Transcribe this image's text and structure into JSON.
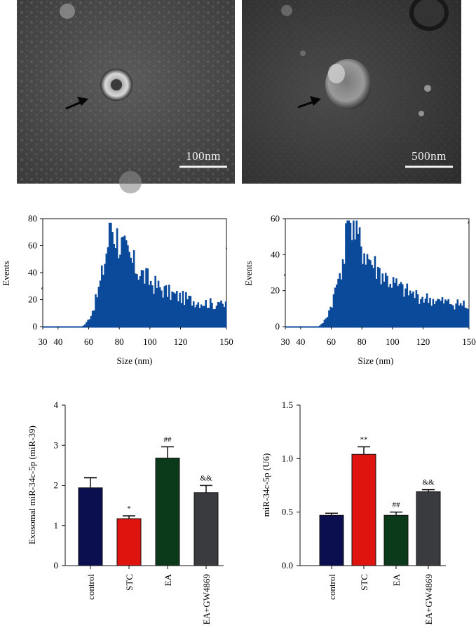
{
  "figure": {
    "micrographs": [
      {
        "scale_label": "100nm",
        "arrow_icon": "arrow-icon"
      },
      {
        "scale_label": "500nm",
        "arrow_icon": "arrow-icon"
      }
    ],
    "colors": {
      "histogram": "#0b4a9b",
      "control": "#0b0f4f",
      "STC": "#e0140e",
      "EA": "#0b3a1a",
      "EA+GW4869": "#3a3b3e"
    }
  },
  "chart_data": [
    {
      "type": "bar",
      "subtype": "histogram",
      "xlabel": "Size (nm)",
      "ylabel": "Events",
      "xlim": [
        30,
        150
      ],
      "ylim": [
        0,
        80
      ],
      "x_ticks": [
        "30",
        "40",
        "60",
        "80",
        "100",
        "120",
        "150"
      ],
      "y_ticks": [
        "0",
        "20",
        "40",
        "60",
        "80"
      ],
      "peak_size_nm": 74,
      "peak_events": 77
    },
    {
      "type": "bar",
      "subtype": "histogram",
      "xlabel": "Size (nm)",
      "ylabel": "Events",
      "xlim": [
        30,
        150
      ],
      "ylim": [
        0,
        60
      ],
      "x_ticks": [
        "30",
        "40",
        "60",
        "80",
        "100",
        "120",
        "150"
      ],
      "y_ticks": [
        "0",
        "20",
        "40",
        "60"
      ],
      "peak_size_nm": 71,
      "peak_events": 59
    },
    {
      "type": "bar",
      "categories": [
        "control",
        "STC",
        "EA",
        "EA+GW4869"
      ],
      "values": [
        1.94,
        1.17,
        2.68,
        1.82
      ],
      "errors": [
        0.25,
        0.07,
        0.28,
        0.18
      ],
      "annotations": [
        "",
        "*",
        "##",
        "&&"
      ],
      "ylabel": "Exosomal miR-34c-5p (miR-39)",
      "ylim": [
        0,
        4
      ],
      "y_ticks": [
        "0",
        "1",
        "2",
        "3",
        "4"
      ]
    },
    {
      "type": "bar",
      "categories": [
        "control",
        "STC",
        "EA",
        "EA+GW4869"
      ],
      "values": [
        0.47,
        1.04,
        0.47,
        0.69
      ],
      "errors": [
        0.02,
        0.07,
        0.03,
        0.02
      ],
      "annotations": [
        "",
        "**",
        "##",
        "&&"
      ],
      "ylabel": "miR-34c-5p (U6)",
      "ylim": [
        0,
        1.5
      ],
      "y_ticks": [
        "0.0",
        "0.5",
        "1.0",
        "1.5"
      ]
    }
  ]
}
